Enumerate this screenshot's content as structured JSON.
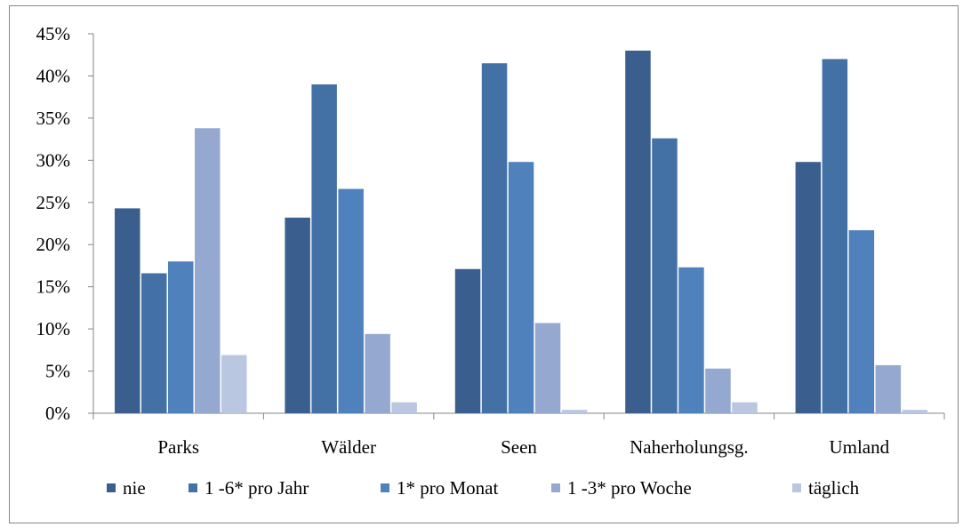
{
  "chart_data": {
    "type": "bar",
    "categories": [
      "Parks",
      "Wälder",
      "Seen",
      "Naherholungsg.",
      "Umland"
    ],
    "series": [
      {
        "name": "nie",
        "color": "#3A5F8F",
        "values": [
          24.3,
          23.2,
          17.1,
          43.0,
          29.8
        ]
      },
      {
        "name": "1 -6* pro Jahr",
        "color": "#4371A6",
        "values": [
          16.6,
          39.0,
          41.5,
          32.6,
          42.0
        ]
      },
      {
        "name": "1* pro Monat",
        "color": "#4F81BD",
        "values": [
          18.0,
          26.6,
          29.8,
          17.3,
          21.7
        ]
      },
      {
        "name": "1 -3* pro Woche",
        "color": "#95A9D0",
        "values": [
          33.8,
          9.4,
          10.7,
          5.3,
          5.7
        ]
      },
      {
        "name": "täglich",
        "color": "#BAC7E0",
        "values": [
          6.9,
          1.3,
          0.4,
          1.3,
          0.4
        ]
      }
    ],
    "ylim": [
      0,
      45
    ],
    "yticks": [
      "0%",
      "5%",
      "10%",
      "15%",
      "20%",
      "25%",
      "30%",
      "35%",
      "40%",
      "45%"
    ],
    "ytick_values": [
      0,
      5,
      10,
      15,
      20,
      25,
      30,
      35,
      40,
      45
    ],
    "title": "",
    "xlabel": "",
    "ylabel": "",
    "grid": false,
    "legend_position": "bottom"
  }
}
